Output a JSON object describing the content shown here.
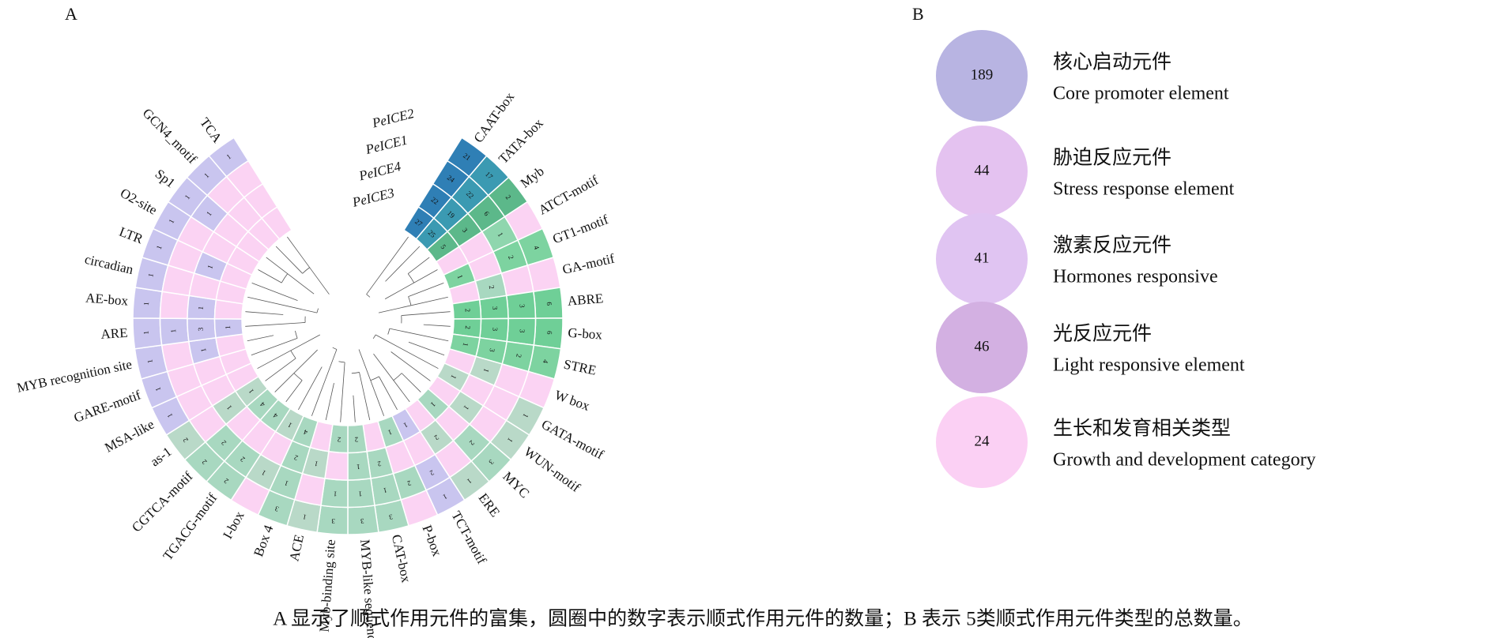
{
  "caption": "A 显示了顺式作用元件的富集，圆圈中的数字表示顺式作用元件的数量；B 表示 5类顺式作用元件类型的总数量。",
  "chart_data": [
    {
      "type": "circular-heatmap",
      "panel": "A",
      "rings": [
        "PeICE2",
        "PeICE1",
        "PeICE4",
        "PeICE3"
      ],
      "motifs": [
        {
          "name": "CAAT-box",
          "color": "#2f7fb5",
          "values": [
            21,
            24,
            22,
            27
          ]
        },
        {
          "name": "TATA-box",
          "color": "#3b9ab2",
          "values": [
            17,
            22,
            19,
            25
          ]
        },
        {
          "name": "Myb",
          "color": "#5cb88a",
          "values": [
            2,
            6,
            3,
            5
          ]
        },
        {
          "name": "ATCT-motif",
          "color": "#8fd6ae",
          "values": [
            null,
            1,
            null,
            null
          ]
        },
        {
          "name": "GT1-motif",
          "color": "#7dd3a0",
          "values": [
            4,
            2,
            null,
            1
          ]
        },
        {
          "name": "GA-motif",
          "color": "#a8d8c0",
          "values": [
            null,
            null,
            2,
            null
          ]
        },
        {
          "name": "ABRE",
          "color": "#6fcf97",
          "values": [
            6,
            3,
            3,
            2
          ]
        },
        {
          "name": "G-box",
          "color": "#6fcf97",
          "values": [
            6,
            3,
            3,
            2
          ]
        },
        {
          "name": "STRE",
          "color": "#7dd3a0",
          "values": [
            4,
            2,
            3,
            1
          ]
        },
        {
          "name": "W box",
          "color": "#b9d9c8",
          "values": [
            null,
            null,
            1,
            null
          ]
        },
        {
          "name": "GATA-motif",
          "color": "#b9d9c8",
          "values": [
            1,
            null,
            null,
            1
          ]
        },
        {
          "name": "WUN-motif",
          "color": "#b9d9c8",
          "values": [
            1,
            null,
            1,
            null
          ]
        },
        {
          "name": "MYC",
          "color": "#a8d8c0",
          "values": [
            3,
            2,
            null,
            1
          ]
        },
        {
          "name": "ERE",
          "color": "#b9d9c8",
          "values": [
            1,
            null,
            2,
            null
          ]
        },
        {
          "name": "TCT-motif",
          "color": "#c9c5ef",
          "values": [
            1,
            2,
            null,
            1
          ]
        },
        {
          "name": "P-box",
          "color": "#a8d8c0",
          "values": [
            null,
            2,
            null,
            1
          ]
        },
        {
          "name": "CAT-box",
          "color": "#a8d8c0",
          "values": [
            3,
            1,
            2,
            null
          ]
        },
        {
          "name": "MYB-like sequence",
          "color": "#a8d8c0",
          "values": [
            3,
            1,
            1,
            2
          ]
        },
        {
          "name": "Myb-binding site",
          "color": "#a8d8c0",
          "values": [
            3,
            1,
            null,
            2
          ]
        },
        {
          "name": "ACE",
          "color": "#b9d9c8",
          "values": [
            1,
            null,
            1,
            null
          ]
        },
        {
          "name": "Box 4",
          "color": "#a8d8c0",
          "values": [
            3,
            1,
            2,
            4
          ]
        },
        {
          "name": "I-box",
          "color": "#b9d9c8",
          "values": [
            null,
            1,
            null,
            1
          ]
        },
        {
          "name": "TGACG-motif",
          "color": "#a8d8c0",
          "values": [
            2,
            2,
            null,
            4
          ]
        },
        {
          "name": "CGTCA-motif",
          "color": "#a8d8c0",
          "values": [
            2,
            2,
            null,
            4
          ]
        },
        {
          "name": "as-1",
          "color": "#b9d9c8",
          "values": [
            2,
            null,
            1,
            1
          ]
        },
        {
          "name": "MSA-like",
          "color": "#c9c5ef",
          "values": [
            1,
            null,
            null,
            null
          ]
        },
        {
          "name": "GARE-motif",
          "color": "#c9c5ef",
          "values": [
            1,
            null,
            null,
            null
          ]
        },
        {
          "name": "MYB recognition site",
          "color": "#c9c5ef",
          "values": [
            1,
            null,
            1,
            null
          ]
        },
        {
          "name": "ARE",
          "color": "#c9c5ef",
          "values": [
            1,
            1,
            3,
            1
          ]
        },
        {
          "name": "AE-box",
          "color": "#c9c5ef",
          "values": [
            1,
            null,
            1,
            null
          ]
        },
        {
          "name": "circadian",
          "color": "#c9c5ef",
          "values": [
            1,
            null,
            null,
            null
          ]
        },
        {
          "name": "LTR",
          "color": "#c9c5ef",
          "values": [
            1,
            null,
            1,
            null
          ]
        },
        {
          "name": "O2-site",
          "color": "#c9c5ef",
          "values": [
            1,
            null,
            null,
            null
          ]
        },
        {
          "name": "Sp1",
          "color": "#c9c5ef",
          "values": [
            1,
            1,
            null,
            null
          ]
        },
        {
          "name": "GCN4_motif",
          "color": "#c9c5ef",
          "values": [
            1,
            null,
            null,
            null
          ]
        },
        {
          "name": "TCA",
          "color": "#c9c5ef",
          "values": [
            1,
            null,
            null,
            null
          ]
        }
      ]
    },
    {
      "type": "bubble-list",
      "panel": "B",
      "categories": [
        "核心启动元件",
        "胁迫反应元件",
        "激素反应元件",
        "光反应元件",
        "生长和发育相关类型"
      ],
      "descriptions": [
        "Core promoter element",
        "Stress response element",
        "Hormones responsive",
        "Light responsive element",
        "Growth and development category"
      ],
      "values": [
        189,
        44,
        41,
        46,
        24
      ],
      "colors": [
        "#b8b4e2",
        "#e4c2f0",
        "#e0c4f2",
        "#d3b0e2",
        "#fbd0f4"
      ]
    }
  ]
}
